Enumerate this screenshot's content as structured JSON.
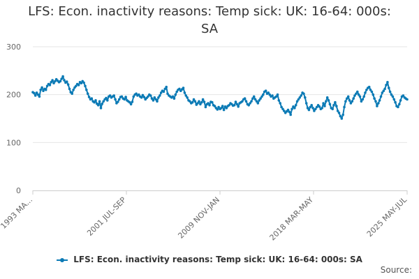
{
  "chart_data": {
    "type": "line",
    "title": "LFS: Econ. inactivity reasons: Temp sick: UK: 16-64: 000s: SA",
    "title_lines": [
      "LFS: Econ. inactivity reasons: Temp sick: UK: 16-64: 000s:",
      "SA"
    ],
    "xlabel": "",
    "ylabel": "",
    "x_tick_labels": [
      "1993 MA...",
      "2001 JUL-SEP",
      "2009 NOV-JAN",
      "2018 MAR-MAY",
      "2025 MAY-JUL"
    ],
    "y_ticks": [
      0,
      100,
      200,
      300
    ],
    "ylim": [
      0,
      300
    ],
    "grid": true,
    "legend_position": "bottom",
    "series_color": "#0b7ab5",
    "series": [
      {
        "name": "LFS: Econ. inactivity reasons: Temp sick: UK: 16-64: 000s: SA",
        "x_start": "1993 MA...",
        "x_end": "2025 MAY-JUL",
        "frequency": "monthly (rolling 3-month)",
        "values": [
          205,
          203,
          198,
          204,
          200,
          196,
          210,
          215,
          208,
          212,
          210,
          218,
          222,
          220,
          226,
          230,
          224,
          228,
          232,
          229,
          226,
          228,
          233,
          238,
          230,
          225,
          227,
          221,
          212,
          205,
          202,
          210,
          215,
          218,
          222,
          220,
          226,
          224,
          228,
          225,
          218,
          210,
          202,
          195,
          190,
          192,
          186,
          184,
          188,
          181,
          178,
          186,
          172,
          181,
          186,
          190,
          193,
          188,
          196,
          198,
          194,
          196,
          198,
          190,
          182,
          185,
          190,
          195,
          196,
          192,
          190,
          195,
          188,
          186,
          184,
          180,
          185,
          196,
          200,
          202,
          198,
          200,
          196,
          194,
          199,
          195,
          190,
          193,
          196,
          200,
          198,
          192,
          188,
          194,
          190,
          186,
          194,
          198,
          204,
          208,
          206,
          212,
          216,
          202,
          198,
          196,
          194,
          196,
          192,
          200,
          206,
          210,
          212,
          208,
          211,
          214,
          204,
          198,
          194,
          188,
          186,
          182,
          184,
          190,
          186,
          179,
          182,
          186,
          180,
          184,
          190,
          185,
          174,
          180,
          182,
          178,
          185,
          184,
          178,
          176,
          172,
          169,
          174,
          170,
          172,
          176,
          168,
          175,
          172,
          176,
          178,
          182,
          180,
          177,
          178,
          185,
          180,
          175,
          182,
          184,
          186,
          190,
          192,
          186,
          180,
          178,
          182,
          186,
          192,
          196,
          190,
          186,
          182,
          188,
          192,
          196,
          200,
          206,
          208,
          202,
          204,
          200,
          196,
          198,
          192,
          194,
          196,
          200,
          188,
          182,
          174,
          170,
          166,
          162,
          165,
          168,
          164,
          158,
          170,
          175,
          172,
          178,
          186,
          190,
          194,
          198,
          204,
          202,
          194,
          182,
          172,
          168,
          174,
          178,
          172,
          166,
          170,
          174,
          178,
          175,
          170,
          172,
          182,
          176,
          186,
          194,
          188,
          180,
          172,
          170,
          178,
          184,
          176,
          166,
          162,
          155,
          150,
          158,
          174,
          186,
          192,
          196,
          188,
          182,
          186,
          192,
          198,
          202,
          206,
          200,
          196,
          186,
          190,
          196,
          204,
          210,
          214,
          216,
          210,
          206,
          200,
          192,
          186,
          176,
          182,
          188,
          196,
          204,
          208,
          212,
          220,
          226,
          214,
          206,
          200,
          196,
          190,
          184,
          176,
          174,
          180,
          188,
          196,
          198,
          194,
          192,
          190
        ]
      }
    ]
  },
  "source_label": "Source:"
}
